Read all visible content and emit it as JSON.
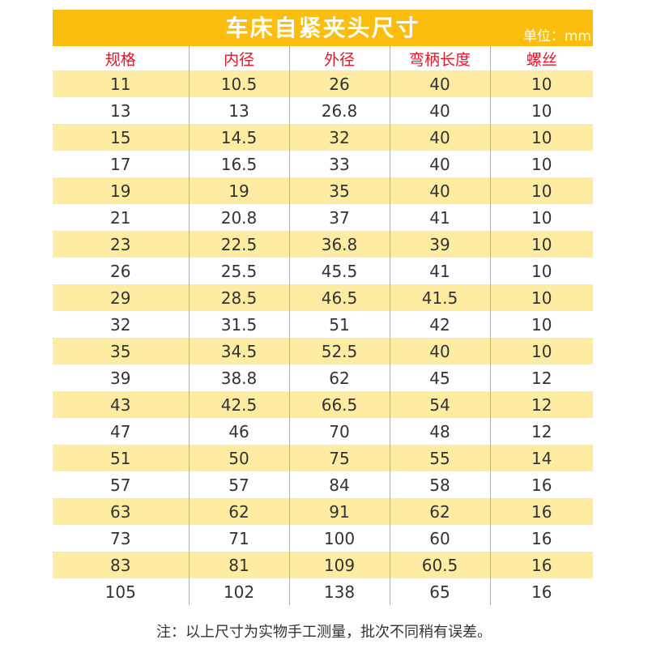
{
  "title": "车床自紧夹头尺寸",
  "unit": "单位：mm",
  "columns": [
    "规格",
    "内径",
    "外径",
    "弯柄长度",
    "螺丝"
  ],
  "rows": [
    [
      "11",
      "10.5",
      "26",
      "40",
      "10"
    ],
    [
      "13",
      "13",
      "26.8",
      "40",
      "10"
    ],
    [
      "15",
      "14.5",
      "32",
      "40",
      "10"
    ],
    [
      "17",
      "16.5",
      "33",
      "40",
      "10"
    ],
    [
      "19",
      "19",
      "35",
      "40",
      "10"
    ],
    [
      "21",
      "20.8",
      "37",
      "41",
      "10"
    ],
    [
      "23",
      "22.5",
      "36.8",
      "39",
      "10"
    ],
    [
      "26",
      "25.5",
      "45.5",
      "41",
      "10"
    ],
    [
      "29",
      "28.5",
      "46.5",
      "41.5",
      "10"
    ],
    [
      "32",
      "31.5",
      "51",
      "42",
      "10"
    ],
    [
      "35",
      "34.5",
      "52.5",
      "40",
      "10"
    ],
    [
      "39",
      "38.8",
      "62",
      "45",
      "12"
    ],
    [
      "43",
      "42.5",
      "66.5",
      "54",
      "12"
    ],
    [
      "47",
      "46",
      "70",
      "48",
      "12"
    ],
    [
      "51",
      "50",
      "75",
      "55",
      "14"
    ],
    [
      "57",
      "57",
      "84",
      "58",
      "16"
    ],
    [
      "63",
      "62",
      "91",
      "62",
      "16"
    ],
    [
      "73",
      "71",
      "100",
      "60",
      "16"
    ],
    [
      "83",
      "81",
      "109",
      "60.5",
      "16"
    ],
    [
      "105",
      "102",
      "138",
      "65",
      "16"
    ]
  ],
  "footnote": "注：以上尺寸为实物手工测量，批次不同稍有误差。",
  "colors": {
    "header_bg": "#fbbd0e",
    "stripe_bg": "#fdeca2",
    "column_header_text": "#e0162b",
    "body_text": "#333333"
  }
}
